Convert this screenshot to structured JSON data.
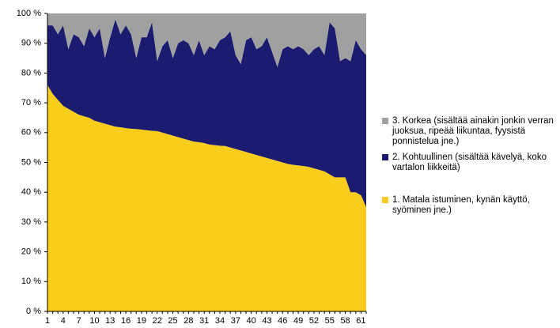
{
  "chart_data": {
    "type": "stacked_area",
    "categories": [
      1,
      null,
      null,
      4,
      null,
      null,
      7,
      null,
      null,
      10,
      null,
      null,
      13,
      null,
      null,
      16,
      null,
      null,
      19,
      null,
      null,
      22,
      null,
      null,
      25,
      null,
      null,
      28,
      null,
      null,
      31,
      null,
      null,
      34,
      null,
      null,
      37,
      null,
      null,
      40,
      null,
      null,
      43,
      null,
      null,
      46,
      null,
      null,
      49,
      null,
      null,
      52,
      null,
      null,
      55,
      null,
      null,
      58,
      null,
      null,
      61,
      null
    ],
    "series": [
      {
        "name": "1. Matala istuminen, kynän käyttö, syöminen jne.)",
        "color": "#f9cd1b",
        "values": [
          76,
          73,
          71,
          69,
          68,
          67,
          66,
          65.5,
          65,
          64,
          63.5,
          63,
          62.5,
          62,
          61.8,
          61.5,
          61.3,
          61.2,
          61,
          60.8,
          60.6,
          60.5,
          60,
          59.5,
          59,
          58.5,
          58,
          57.5,
          57,
          56.8,
          56.5,
          56,
          55.8,
          55.6,
          55.5,
          55,
          54.5,
          54,
          53.5,
          53,
          52.5,
          52,
          51.5,
          51,
          50.5,
          50,
          49.5,
          49.2,
          49,
          48.8,
          48.5,
          48,
          47.5,
          47,
          46,
          45,
          45,
          45,
          40,
          40,
          39,
          35
        ]
      },
      {
        "name": "2. Kohtuullinen (sisältää kävelyä, koko vartalon liikkeitä)",
        "color": "#1b1b6f",
        "values": [
          20,
          23,
          22,
          27,
          20,
          26,
          26,
          23.5,
          30,
          28,
          31.5,
          22,
          29.5,
          36,
          31.2,
          34.5,
          31.7,
          23.8,
          31,
          31.2,
          36.4,
          23.5,
          29,
          31.5,
          26,
          31.5,
          33,
          32.5,
          29,
          34.2,
          29.5,
          33,
          32.2,
          35.4,
          36.5,
          39,
          31.5,
          29,
          37.5,
          39,
          35.5,
          37,
          40.5,
          36,
          31.5,
          38,
          39.5,
          38.8,
          40,
          39.2,
          37.5,
          40,
          41.5,
          39,
          51,
          50,
          39,
          40,
          44,
          51,
          49,
          51
        ]
      },
      {
        "name": "3. Korkea (sisältää ainakin jonkin verran juoksua, ripeää liikuntaa, fyysistä ponnistelua jne.)",
        "color": "#a0a0a0",
        "values": [
          4,
          4,
          7,
          4,
          12,
          7,
          8,
          11,
          5,
          8,
          5,
          15,
          8,
          2,
          7,
          4,
          7,
          15,
          8,
          8,
          3,
          16,
          11,
          9,
          15,
          10,
          9,
          10,
          14,
          9,
          14,
          11,
          12,
          9,
          8,
          6,
          14,
          17,
          9,
          8,
          12,
          11,
          8,
          13,
          18,
          12,
          11,
          12,
          11,
          12,
          14,
          12,
          11,
          14,
          3,
          5,
          16,
          15,
          16,
          9,
          12,
          14
        ]
      }
    ],
    "ylim": [
      0,
      100
    ],
    "yticks": [
      {
        "value": 0,
        "label": "0 %"
      },
      {
        "value": 10,
        "label": "10 %"
      },
      {
        "value": 20,
        "label": "20 %"
      },
      {
        "value": 30,
        "label": "30 %"
      },
      {
        "value": 40,
        "label": "40 %"
      },
      {
        "value": 50,
        "label": "50 %"
      },
      {
        "value": 60,
        "label": "60 %"
      },
      {
        "value": 70,
        "label": "70 %"
      },
      {
        "value": 80,
        "label": "80 %"
      },
      {
        "value": 90,
        "label": "90 %"
      },
      {
        "value": 100,
        "label": "100 %"
      }
    ],
    "grid": false,
    "legend": "right"
  }
}
